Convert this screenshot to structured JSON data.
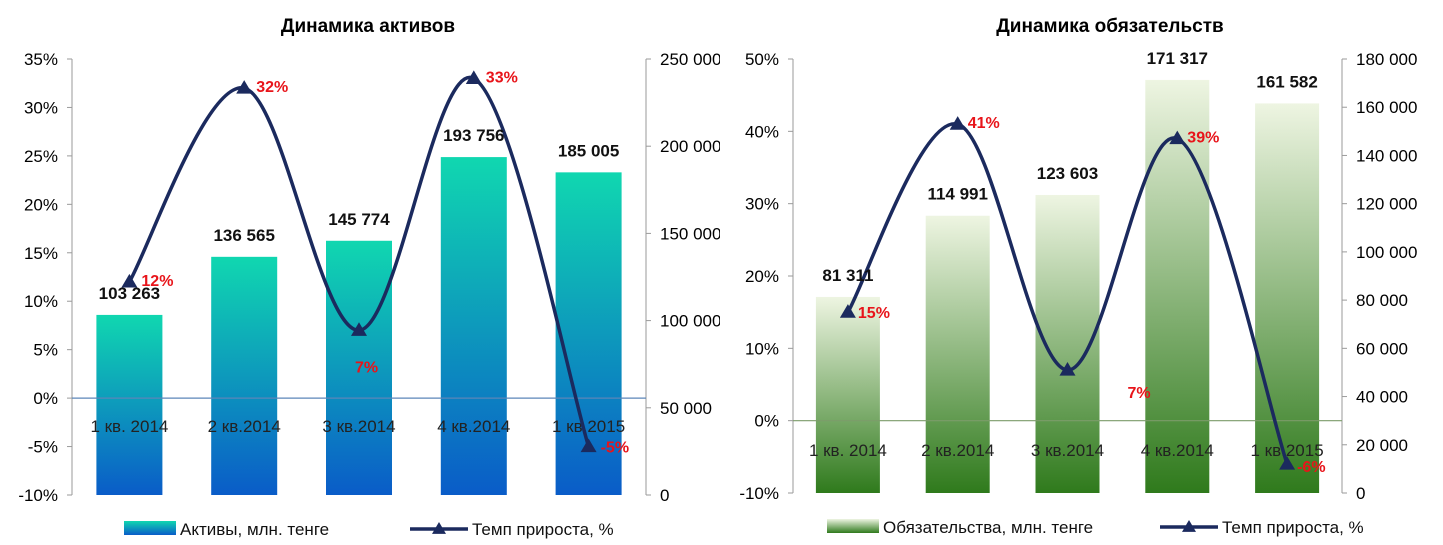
{
  "chart_data": [
    {
      "type": "bar",
      "title": "Динамика активов",
      "categories": [
        "1 кв. 2014",
        "2 кв.2014",
        "3 кв.2014",
        "4 кв.2014",
        "1 кв.2015"
      ],
      "series": [
        {
          "name": "Активы, млн. тенге",
          "type": "bar",
          "axis": "right",
          "values": [
            103263,
            136565,
            145774,
            193756,
            185005
          ],
          "labels": [
            "103 263",
            "136 565",
            "145 774",
            "193 756",
            "185 005"
          ]
        },
        {
          "name": "Темп прироста, %",
          "type": "line",
          "axis": "left",
          "values": [
            12,
            32,
            7,
            33,
            -5
          ],
          "labels": [
            "12%",
            "32%",
            "7%",
            "33%",
            "-5%"
          ]
        }
      ],
      "y_left": {
        "ylim": [
          -10,
          35
        ],
        "ticks": [
          "35%",
          "30%",
          "25%",
          "20%",
          "15%",
          "10%",
          "5%",
          "0%",
          "-5%",
          "-10%"
        ]
      },
      "y_right": {
        "ylim": [
          0,
          250000
        ],
        "ticks": [
          "250 000",
          "200 000",
          "150 000",
          "100 000",
          "50 000",
          "0"
        ]
      },
      "colors": {
        "bar_top": "#10d7b0",
        "bar_bottom": "#0a5cc8",
        "line": "#1b2a5e",
        "percent_label": "#e8141a"
      },
      "legend": "bottom"
    },
    {
      "type": "bar",
      "title": "Динамика обязательств",
      "categories": [
        "1 кв. 2014",
        "2 кв.2014",
        "3 кв.2014",
        "4 кв.2014",
        "1 кв.2015"
      ],
      "series": [
        {
          "name": "Обязательства, млн. тенге",
          "type": "bar",
          "axis": "right",
          "values": [
            81311,
            114991,
            123603,
            171317,
            161582
          ],
          "labels": [
            "81 311",
            "114 991",
            "123 603",
            "171 317",
            "161 582"
          ]
        },
        {
          "name": "Темп прироста, %",
          "type": "line",
          "axis": "left",
          "values": [
            15,
            41,
            7,
            39,
            -6
          ],
          "labels": [
            "15%",
            "41%",
            "7%",
            "39%",
            "-6%"
          ]
        }
      ],
      "y_left": {
        "ylim": [
          -10,
          50
        ],
        "ticks": [
          "50%",
          "40%",
          "30%",
          "20%",
          "10%",
          "0%",
          "-10%"
        ]
      },
      "y_right": {
        "ylim": [
          0,
          180000
        ],
        "ticks": [
          "180 000",
          "160 000",
          "140 000",
          "120 000",
          "100 000",
          "80 000",
          "60 000",
          "40 000",
          "20 000",
          "0"
        ]
      },
      "colors": {
        "bar_top": "#eef5e2",
        "bar_bottom": "#2f7a1c",
        "line": "#1b2a5e",
        "percent_label": "#e8141a"
      },
      "legend": "bottom"
    }
  ]
}
